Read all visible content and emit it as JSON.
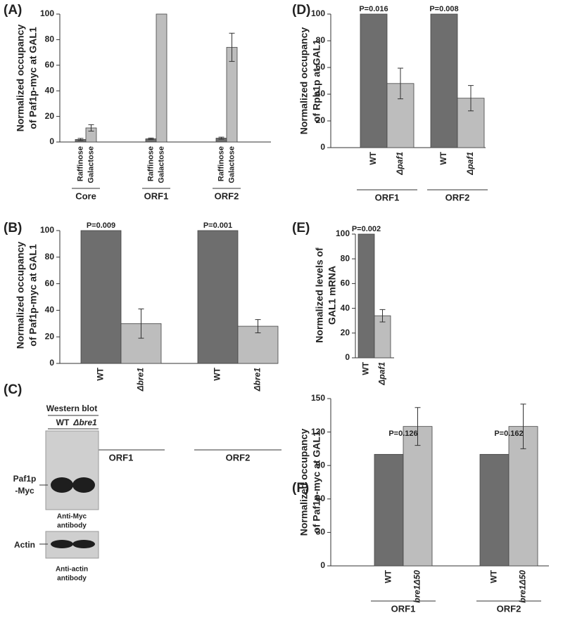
{
  "chart_data": [
    {
      "type": "bar",
      "panel_label": "(A)",
      "ylabel": [
        "Normalized occupancy",
        "of Paf1p-myc at GAL1"
      ],
      "groups": [
        "Core",
        "ORF1",
        "ORF2"
      ],
      "series": [
        {
          "name": "Raffinose",
          "color": "#6e6e6e",
          "values": [
            2,
            2.5,
            3
          ],
          "errors": [
            0.8,
            0.6,
            0.8
          ]
        },
        {
          "name": "Galactose",
          "color": "#bdbdbd",
          "values": [
            11,
            100,
            74
          ],
          "errors": [
            2.5,
            null,
            11
          ]
        }
      ],
      "ylim": [
        0,
        100
      ],
      "yticks": [
        0,
        20,
        40,
        60,
        80,
        100
      ]
    },
    {
      "type": "bar",
      "panel_label": "(D)",
      "ylabel": [
        "Normalized occupancy",
        "of Rpb1p at GAL1"
      ],
      "groups": [
        "ORF1",
        "ORF2"
      ],
      "series": [
        {
          "name": "WT",
          "color": "#6e6e6e",
          "values": [
            100,
            100
          ]
        },
        {
          "name": "Δpaf1",
          "color": "#bdbdbd",
          "values": [
            48,
            37
          ],
          "errors": [
            11.5,
            9.5
          ]
        }
      ],
      "annotations": [
        "P=0.016",
        "P=0.008"
      ],
      "ylim": [
        0,
        100
      ],
      "yticks": [
        0,
        20,
        40,
        60,
        80,
        100
      ]
    },
    {
      "type": "bar",
      "panel_label": "(B)",
      "ylabel": [
        "Normalized occupancy",
        "of Paf1p-myc at GAL1"
      ],
      "groups": [
        "ORF1",
        "ORF2"
      ],
      "series": [
        {
          "name": "WT",
          "color": "#6e6e6e",
          "values": [
            100,
            100
          ]
        },
        {
          "name": "Δbre1",
          "color": "#bdbdbd",
          "values": [
            30,
            28
          ],
          "errors": [
            11,
            5
          ]
        }
      ],
      "annotations": [
        "P=0.009",
        "P=0.001"
      ],
      "ylim": [
        0,
        100
      ],
      "yticks": [
        0,
        20,
        40,
        60,
        80,
        100
      ]
    },
    {
      "type": "bar",
      "panel_label": "(E)",
      "ylabel": [
        "Normalized levels of",
        "GAL1 mRNA"
      ],
      "series": [
        {
          "name": "WT",
          "color": "#6e6e6e",
          "values": [
            100
          ]
        },
        {
          "name": "Δpaf1",
          "color": "#bdbdbd",
          "values": [
            34
          ],
          "errors": [
            5
          ]
        }
      ],
      "annotations": [
        "P=0.002"
      ],
      "ylim": [
        0,
        100
      ],
      "yticks": [
        0,
        20,
        40,
        60,
        80,
        100
      ]
    },
    {
      "type": "bar",
      "panel_label": "(F)",
      "ylabel": [
        "Normalized occupancy",
        "of Paf1p-myc at GAL1"
      ],
      "groups": [
        "ORF1",
        "ORF2"
      ],
      "series": [
        {
          "name": "WT",
          "color": "#6e6e6e",
          "values": [
            100,
            100
          ]
        },
        {
          "name": "bre1Δ50",
          "color": "#bdbdbd",
          "values": [
            125,
            125
          ],
          "errors": [
            17,
            20
          ]
        }
      ],
      "annotations": [
        "P=0.126",
        "P=0.162"
      ],
      "ylim": [
        0,
        150
      ],
      "yticks": [
        0,
        30,
        60,
        90,
        120,
        150
      ]
    }
  ],
  "western_blot": {
    "panel_label": "(C)",
    "title": "Western blot",
    "lanes": [
      "WT",
      "Δbre1"
    ],
    "blots": [
      {
        "label": [
          "Paf1p",
          "-Myc"
        ],
        "antibody": [
          "Anti-Myc",
          "antibody"
        ]
      },
      {
        "label": [
          "Actin"
        ],
        "antibody": [
          "Anti-actin",
          "antibody"
        ]
      }
    ]
  }
}
